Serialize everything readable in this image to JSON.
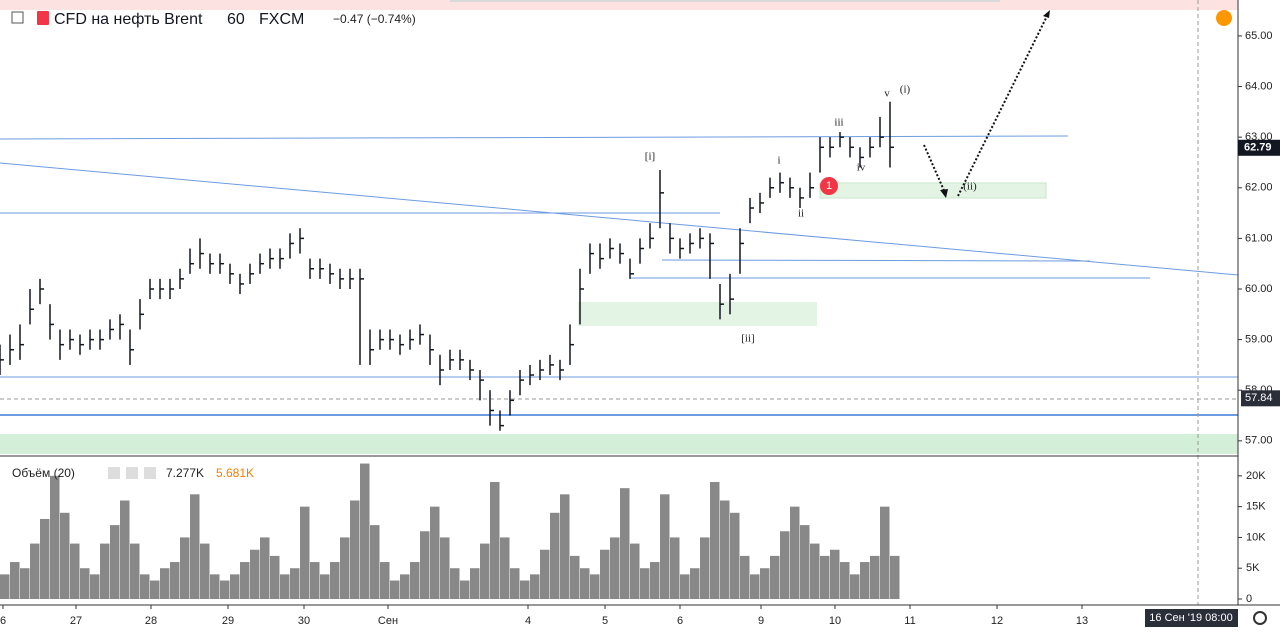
{
  "header": {
    "symbol": "CFD на нефть Brent",
    "interval": "60",
    "exchange": "FXCM",
    "change": "−0.47 (−0.74%)"
  },
  "volume_legend": {
    "name": "Объём (20)",
    "value": "7.277K",
    "average": "5.681K"
  },
  "annotations": [
    "[i]",
    "[ii]",
    "i",
    "ii",
    "iii",
    "iv",
    "v",
    "(i)",
    "(ii)",
    "1"
  ],
  "time_label": "16 Сен '19  08:00",
  "chart_data": [
    {
      "type": "ohlc",
      "close": [
        58.6,
        58.8,
        58.9,
        59.6,
        60.0,
        59.3,
        58.9,
        59.0,
        58.9,
        59.0,
        59.0,
        59.2,
        59.3,
        58.8,
        59.5,
        60.0,
        60.0,
        60.0,
        60.2,
        60.5,
        60.7,
        60.5,
        60.5,
        60.3,
        60.1,
        60.3,
        60.5,
        60.6,
        60.6,
        60.9,
        61.0,
        60.4,
        60.4,
        60.3,
        60.2,
        60.2,
        60.2,
        58.8,
        59.0,
        59.0,
        58.9,
        59.0,
        59.1,
        58.8,
        58.4,
        58.6,
        58.6,
        58.4,
        58.2,
        57.6,
        57.3,
        57.8,
        58.2,
        58.3,
        58.4,
        58.5,
        58.4,
        58.9,
        60.0,
        60.7,
        60.6,
        60.8,
        60.7,
        60.3,
        60.8,
        61.0,
        61.9,
        61.0,
        60.8,
        60.9,
        61.0,
        60.9,
        59.7,
        59.8,
        60.9,
        61.6,
        61.7,
        62.0,
        62.1,
        62.0,
        61.8,
        62.0,
        62.8,
        62.8,
        63.0,
        62.8,
        62.6,
        62.8,
        63.0,
        62.8
      ],
      "high": [
        58.9,
        59.1,
        59.3,
        60.0,
        60.2,
        59.7,
        59.2,
        59.2,
        59.1,
        59.2,
        59.2,
        59.4,
        59.5,
        59.2,
        59.8,
        60.2,
        60.2,
        60.2,
        60.4,
        60.8,
        61.0,
        60.7,
        60.7,
        60.5,
        60.3,
        60.5,
        60.7,
        60.8,
        60.8,
        61.1,
        61.2,
        60.6,
        60.6,
        60.5,
        60.4,
        60.4,
        60.4,
        59.2,
        59.2,
        59.2,
        59.1,
        59.2,
        59.3,
        59.1,
        58.7,
        58.8,
        58.8,
        58.6,
        58.4,
        58.0,
        57.6,
        58.0,
        58.4,
        58.5,
        58.6,
        58.7,
        58.6,
        59.3,
        60.4,
        60.9,
        60.9,
        61.0,
        60.9,
        60.6,
        61.0,
        61.3,
        62.35,
        61.3,
        61.0,
        61.1,
        61.2,
        61.1,
        60.1,
        60.3,
        61.2,
        61.8,
        61.9,
        62.2,
        62.3,
        62.2,
        62.0,
        62.3,
        63.0,
        63.0,
        63.1,
        63.0,
        62.8,
        63.0,
        63.4,
        63.7
      ],
      "low": [
        58.3,
        58.5,
        58.6,
        59.3,
        59.7,
        59.0,
        58.6,
        58.8,
        58.7,
        58.8,
        58.8,
        59.0,
        59.0,
        58.5,
        59.2,
        59.8,
        59.8,
        59.8,
        60.0,
        60.3,
        60.4,
        60.3,
        60.3,
        60.1,
        59.9,
        60.1,
        60.3,
        60.4,
        60.4,
        60.6,
        60.7,
        60.2,
        60.2,
        60.1,
        60.0,
        60.0,
        58.5,
        58.5,
        58.8,
        58.8,
        58.7,
        58.8,
        58.9,
        58.5,
        58.1,
        58.4,
        58.4,
        58.2,
        57.8,
        57.3,
        57.2,
        57.5,
        57.9,
        58.1,
        58.2,
        58.3,
        58.2,
        58.5,
        59.3,
        60.3,
        60.4,
        60.6,
        60.5,
        60.2,
        60.5,
        60.8,
        61.2,
        60.7,
        60.6,
        60.7,
        60.8,
        60.2,
        59.4,
        59.5,
        60.3,
        61.3,
        61.5,
        61.8,
        61.9,
        61.8,
        61.6,
        61.8,
        62.3,
        62.6,
        62.8,
        62.6,
        62.4,
        62.6,
        62.8,
        62.4
      ],
      "ylim": [
        56.72,
        65.71
      ],
      "yticks": [
        {
          "value": 57,
          "label": "57.00"
        },
        {
          "value": 58,
          "label": "58.00"
        },
        {
          "value": 59,
          "label": "59.00"
        },
        {
          "value": 60,
          "label": "60.00"
        },
        {
          "value": 61,
          "label": "61.00"
        },
        {
          "value": 62,
          "label": "62.00"
        },
        {
          "value": 63,
          "label": "63.00"
        },
        {
          "value": 64,
          "label": "64.00"
        },
        {
          "value": 65,
          "label": "65.00"
        }
      ],
      "xlim": [
        0,
        123.8
      ],
      "xticks": [
        {
          "value": 0.3,
          "label": "6"
        },
        {
          "value": 7.6,
          "label": "27"
        },
        {
          "value": 15.1,
          "label": "28"
        },
        {
          "value": 22.8,
          "label": "29"
        },
        {
          "value": 30.4,
          "label": "30"
        },
        {
          "value": 38.8,
          "label": "Сен"
        },
        {
          "value": 52.8,
          "label": "4"
        },
        {
          "value": 60.5,
          "label": "5"
        },
        {
          "value": 68,
          "label": "6"
        },
        {
          "value": 76.1,
          "label": "9"
        },
        {
          "value": 83.5,
          "label": "10"
        },
        {
          "value": 91,
          "label": "11"
        },
        {
          "value": 99.7,
          "label": "12"
        },
        {
          "value": 108.2,
          "label": "13"
        }
      ],
      "last_price": {
        "value": 62.79,
        "label": "62.79"
      },
      "crosshair_price": {
        "value": 57.84,
        "label": "57.84"
      },
      "color": "#131722"
    },
    {
      "type": "bar",
      "values": [
        4000,
        6000,
        5000,
        9000,
        13000,
        20000,
        14000,
        9000,
        5000,
        4000,
        9000,
        12000,
        16000,
        9000,
        4000,
        3000,
        5000,
        6000,
        10000,
        17000,
        9000,
        4000,
        3000,
        4000,
        6000,
        8000,
        10000,
        7000,
        4000,
        5000,
        15000,
        6000,
        4000,
        6000,
        10000,
        16000,
        22000,
        12000,
        6000,
        3000,
        4000,
        6000,
        11000,
        15000,
        10000,
        5000,
        3000,
        5000,
        9000,
        19000,
        10000,
        5000,
        3000,
        4000,
        8000,
        14000,
        17000,
        7000,
        5000,
        4000,
        8000,
        10000,
        18000,
        9000,
        5000,
        6000,
        17000,
        10000,
        4000,
        5000,
        10000,
        19000,
        16000,
        14000,
        7000,
        4000,
        5000,
        7000,
        11000,
        15000,
        12000,
        9000,
        7000,
        8000,
        6000,
        4000,
        6000,
        7000,
        15000,
        7000
      ],
      "ylim": [
        0,
        22900
      ],
      "yticks": [
        0,
        {
          "value": 5000,
          "label": "5K"
        },
        {
          "value": 10000,
          "label": "10K"
        },
        {
          "value": 15000,
          "label": "15K"
        },
        {
          "value": 20000,
          "label": "20K"
        }
      ],
      "color": "#888888"
    }
  ]
}
